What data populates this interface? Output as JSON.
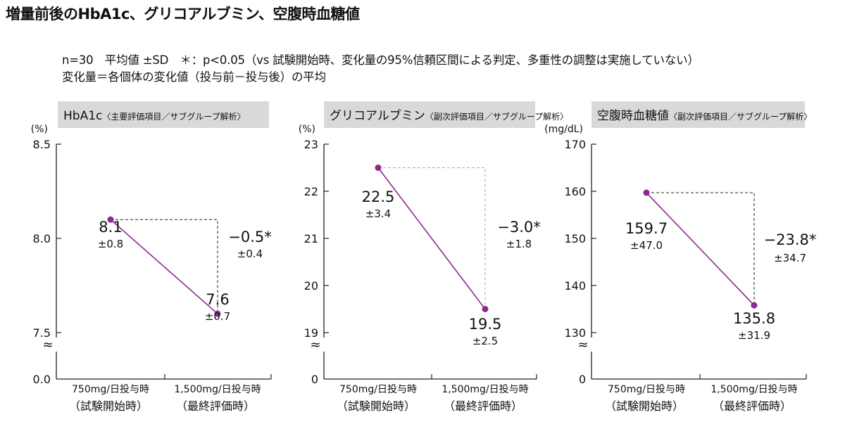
{
  "title": "増量前後のHbA1c、グリコアルブミン、空腹時血糖値",
  "notes": {
    "line1": "n=30　平均値 ±SD　＊：p<0.05（vs 試験開始時、変化量の95%信頼区間による判定、多重性の調整は実施していない）",
    "line2": "変化量＝各個体の変化値（投与前－投与後）の平均"
  },
  "colors": {
    "series": "#8b2a8f",
    "header_bg": "#d9d9d9"
  },
  "break_symbol": "≈",
  "chart_data": [
    {
      "type": "line",
      "header": "HbA1c",
      "header_sub": "〈主要評価項目／サブグループ解析〉",
      "unit": "(%)",
      "ylim": [
        7.5,
        8.5
      ],
      "baseline_label": "0.0",
      "yticks": [
        "8.5",
        "8.0",
        "7.5"
      ],
      "ytick_values": [
        8.5,
        8.0,
        7.5
      ],
      "categories": [
        {
          "line1": "750mg/日投与時",
          "line2": "（試験開始時）"
        },
        {
          "line1": "1,500mg/日投与時",
          "line2": "（最終評価時）"
        }
      ],
      "values": [
        8.1,
        7.6
      ],
      "value_labels": [
        "8.1",
        "7.6"
      ],
      "sd_labels": [
        "±0.8",
        "±0.7"
      ],
      "change_label": "−0.5*",
      "change_sd": "±0.4"
    },
    {
      "type": "line",
      "header": "グリコアルブミン",
      "header_sub": "〈副次評価項目／サブグループ解析〉",
      "unit": "(%)",
      "ylim": [
        19,
        23
      ],
      "baseline_label": "0",
      "yticks": [
        "23",
        "22",
        "21",
        "20",
        "19"
      ],
      "ytick_values": [
        23,
        22,
        21,
        20,
        19
      ],
      "categories": [
        {
          "line1": "750mg/日投与時",
          "line2": "（試験開始時）"
        },
        {
          "line1": "1,500mg/日投与時",
          "line2": "（最終評価時）"
        }
      ],
      "values": [
        22.5,
        19.5
      ],
      "value_labels": [
        "22.5",
        "19.5"
      ],
      "sd_labels": [
        "±3.4",
        "±2.5"
      ],
      "change_label": "−3.0*",
      "change_sd": "±1.8"
    },
    {
      "type": "line",
      "header": "空腹時血糖値",
      "header_sub": "〈副次評価項目／サブグループ解析〉",
      "unit": "(mg/dL)",
      "ylim": [
        130,
        170
      ],
      "baseline_label": "0",
      "yticks": [
        "170",
        "160",
        "150",
        "140",
        "130"
      ],
      "ytick_values": [
        170,
        160,
        150,
        140,
        130
      ],
      "categories": [
        {
          "line1": "750mg/日投与時",
          "line2": "（試験開始時）"
        },
        {
          "line1": "1,500mg/日投与時",
          "line2": "（最終評価時）"
        }
      ],
      "values": [
        159.7,
        135.8
      ],
      "value_labels": [
        "159.7",
        "135.8"
      ],
      "sd_labels": [
        "±47.0",
        "±31.9"
      ],
      "change_label": "−23.8*",
      "change_sd": "±34.7"
    }
  ]
}
